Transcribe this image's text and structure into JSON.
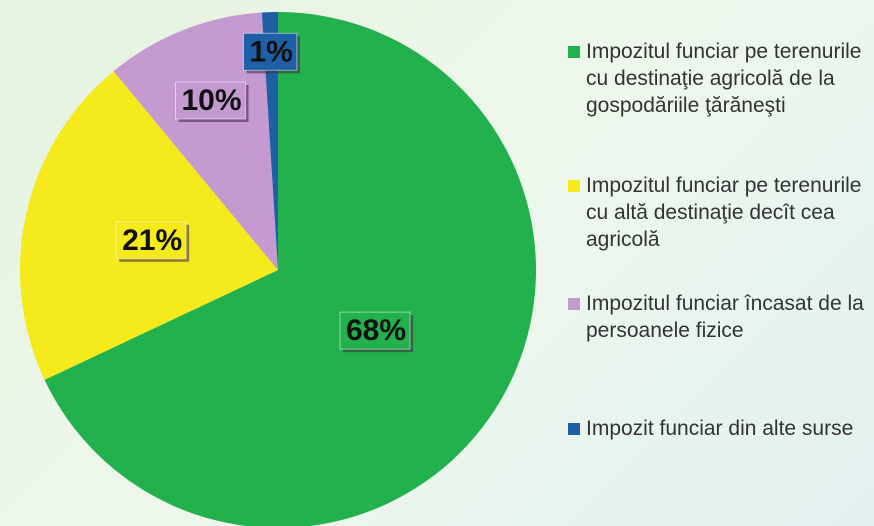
{
  "chart_data": {
    "type": "pie",
    "categories": [
      "Impozitul funciar pe terenurile cu destinaţie agricolă de la gospodăriile ţărăneşti",
      "Impozitul funciar pe terenurile cu altă destinaţie decît cea agricolă",
      "Impozitul funciar încasat de la persoanele fizice",
      "Impozit funciar din alte surse"
    ],
    "values": [
      68,
      21,
      10,
      1
    ],
    "value_labels": [
      "68%",
      "21%",
      "10%",
      "1%"
    ],
    "colors": [
      "#22b14c",
      "#f4ea1c",
      "#c49ad0",
      "#1e5fa6"
    ],
    "legend": "right"
  }
}
